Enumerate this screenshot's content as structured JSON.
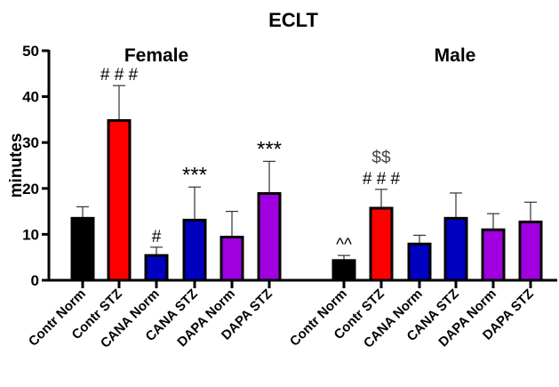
{
  "chart_data": {
    "type": "bar",
    "title": "ECLT",
    "ylabel": "minutes",
    "xlabel": "",
    "ylim": [
      0,
      50
    ],
    "yticks": [
      "0",
      "10",
      "20",
      "30",
      "40",
      "50"
    ],
    "grid": false,
    "groups": [
      {
        "name": "Female",
        "categories": [
          "Contr Norm",
          "Contr STZ",
          "CANA Norm",
          "CANA STZ",
          "DAPA Norm",
          "DAPA STZ"
        ],
        "values": [
          13.5,
          34.8,
          5.4,
          13.1,
          9.4,
          18.9
        ],
        "errors": [
          2.5,
          7.6,
          1.8,
          7.2,
          5.6,
          7.0
        ],
        "annotations": [
          "",
          "# # #",
          "#",
          "***",
          "",
          "***"
        ]
      },
      {
        "name": "Male",
        "categories": [
          "Contr Norm",
          "Contr STZ",
          "CANA Norm",
          "CANA STZ",
          "DAPA Norm",
          "DAPA STZ"
        ],
        "values": [
          4.3,
          15.7,
          7.9,
          13.5,
          11.0,
          12.7
        ],
        "errors": [
          1.1,
          4.1,
          1.9,
          5.5,
          3.5,
          4.3
        ],
        "annotations": [
          "^^",
          "$$\n# # #",
          "",
          "",
          "",
          ""
        ]
      }
    ],
    "colors": [
      "#000000",
      "#ff0000",
      "#0000c0",
      "#0000c0",
      "#a000e0",
      "#a000e0"
    ]
  }
}
